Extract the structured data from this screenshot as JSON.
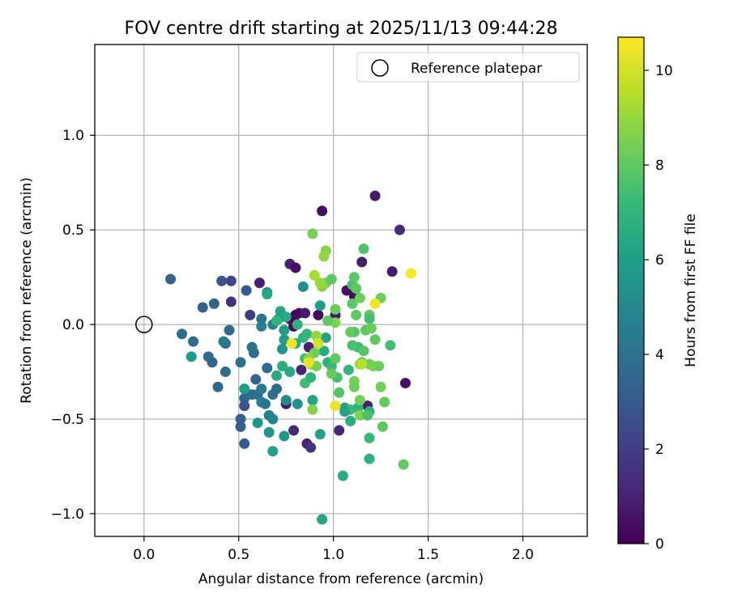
{
  "chart_data": {
    "type": "scatter",
    "title": "FOV centre drift starting at 2025/11/13 09:44:28",
    "xlabel": "Angular distance from reference (arcmin)",
    "ylabel": "Rotation from reference (arcmin)",
    "xlim": [
      -0.26,
      2.34
    ],
    "ylim": [
      -1.12,
      1.48
    ],
    "xticks": [
      0.0,
      0.5,
      1.0,
      1.5,
      2.0
    ],
    "xtick_labels": [
      "0.0",
      "0.5",
      "1.0",
      "1.5",
      "2.0"
    ],
    "yticks": [
      -1.0,
      -0.5,
      0.0,
      0.5,
      1.0
    ],
    "ytick_labels": [
      "−1.0",
      "−0.5",
      "0.0",
      "0.5",
      "1.0"
    ],
    "grid": true,
    "legend": {
      "position": "upper right",
      "entries": [
        "Reference platepar"
      ]
    },
    "reference_point": {
      "x": 0.0,
      "y": 0.0,
      "label": "Reference platepar"
    },
    "colorbar": {
      "label": "Hours from first FF file",
      "range": [
        0,
        10.7
      ],
      "colormap": "viridis",
      "ticks": [
        0,
        2,
        4,
        6,
        8,
        10
      ],
      "tick_labels": [
        "0",
        "2",
        "4",
        "6",
        "8",
        "10"
      ]
    },
    "colormap_stops": [
      "#440154",
      "#482878",
      "#3e4989",
      "#31688e",
      "#26828e",
      "#1f9e89",
      "#35b779",
      "#6ece58",
      "#b5de2b",
      "#fde725"
    ],
    "points": [
      {
        "x": 0.94,
        "y": 0.6,
        "h": 0.3
      },
      {
        "x": 1.22,
        "y": 0.68,
        "h": 0.8
      },
      {
        "x": 1.35,
        "y": 0.5,
        "h": 1.3
      },
      {
        "x": 0.77,
        "y": 0.32,
        "h": 1.0
      },
      {
        "x": 0.8,
        "y": 0.3,
        "h": 0.4
      },
      {
        "x": 1.15,
        "y": 0.33,
        "h": 0.9
      },
      {
        "x": 1.31,
        "y": 0.28,
        "h": 0.8
      },
      {
        "x": 0.61,
        "y": 0.22,
        "h": 1.0
      },
      {
        "x": 0.46,
        "y": 0.12,
        "h": 1.5
      },
      {
        "x": 1.07,
        "y": 0.18,
        "h": 0.5
      },
      {
        "x": 1.11,
        "y": 0.15,
        "h": 0.3
      },
      {
        "x": 1.01,
        "y": 0.05,
        "h": 0.6
      },
      {
        "x": 0.92,
        "y": 0.05,
        "h": 0.2
      },
      {
        "x": 0.82,
        "y": 0.06,
        "h": 0.5
      },
      {
        "x": 0.85,
        "y": 0.06,
        "h": 0.8
      },
      {
        "x": 0.77,
        "y": 0.03,
        "h": 0.1
      },
      {
        "x": 0.8,
        "y": 0.05,
        "h": 0.2
      },
      {
        "x": 0.79,
        "y": -0.01,
        "h": 0.3
      },
      {
        "x": 0.87,
        "y": -0.12,
        "h": 0.9
      },
      {
        "x": 0.83,
        "y": -0.24,
        "h": 1.1
      },
      {
        "x": 0.75,
        "y": -0.42,
        "h": 0.8
      },
      {
        "x": 0.79,
        "y": -0.56,
        "h": 1.3
      },
      {
        "x": 0.86,
        "y": -0.63,
        "h": 1.0
      },
      {
        "x": 0.88,
        "y": -0.65,
        "h": 1.6
      },
      {
        "x": 1.03,
        "y": -0.56,
        "h": 1.1
      },
      {
        "x": 1.18,
        "y": -0.43,
        "h": 0.9
      },
      {
        "x": 1.38,
        "y": -0.31,
        "h": 0.5
      },
      {
        "x": 0.14,
        "y": 0.24,
        "h": 3.5
      },
      {
        "x": 0.41,
        "y": 0.23,
        "h": 2.7
      },
      {
        "x": 0.46,
        "y": 0.23,
        "h": 2.2
      },
      {
        "x": 0.54,
        "y": 0.18,
        "h": 3.0
      },
      {
        "x": 0.31,
        "y": 0.09,
        "h": 3.3
      },
      {
        "x": 0.37,
        "y": 0.11,
        "h": 3.3
      },
      {
        "x": 0.56,
        "y": 0.05,
        "h": 1.9
      },
      {
        "x": 0.45,
        "y": -0.03,
        "h": 3.6
      },
      {
        "x": 0.2,
        "y": -0.05,
        "h": 3.8
      },
      {
        "x": 0.26,
        "y": -0.09,
        "h": 3.8
      },
      {
        "x": 0.43,
        "y": -0.1,
        "h": 3.6
      },
      {
        "x": 0.42,
        "y": -0.09,
        "h": 4.5
      },
      {
        "x": 0.34,
        "y": -0.17,
        "h": 3.8
      },
      {
        "x": 0.36,
        "y": -0.2,
        "h": 3.4
      },
      {
        "x": 0.43,
        "y": -0.25,
        "h": 3.8
      },
      {
        "x": 0.51,
        "y": -0.2,
        "h": 4.0
      },
      {
        "x": 0.57,
        "y": -0.12,
        "h": 4.0
      },
      {
        "x": 0.58,
        "y": -0.15,
        "h": 3.8
      },
      {
        "x": 0.62,
        "y": 0.03,
        "h": 4.1
      },
      {
        "x": 0.62,
        "y": -0.01,
        "h": 4.5
      },
      {
        "x": 0.68,
        "y": 0.0,
        "h": 4.8
      },
      {
        "x": 0.65,
        "y": 0.17,
        "h": 5.3
      },
      {
        "x": 0.25,
        "y": -0.17,
        "h": 5.8
      },
      {
        "x": 0.39,
        "y": -0.33,
        "h": 3.5
      },
      {
        "x": 0.51,
        "y": -0.5,
        "h": 3.3
      },
      {
        "x": 0.51,
        "y": -0.54,
        "h": 3.2
      },
      {
        "x": 0.53,
        "y": -0.39,
        "h": 3.6
      },
      {
        "x": 0.53,
        "y": -0.43,
        "h": 2.8
      },
      {
        "x": 0.53,
        "y": -0.63,
        "h": 3.1
      },
      {
        "x": 0.59,
        "y": -0.29,
        "h": 3.4
      },
      {
        "x": 0.57,
        "y": -0.37,
        "h": 3.9
      },
      {
        "x": 0.6,
        "y": -0.37,
        "h": 3.8
      },
      {
        "x": 0.62,
        "y": -0.34,
        "h": 4.5
      },
      {
        "x": 0.62,
        "y": -0.41,
        "h": 4.8
      },
      {
        "x": 0.64,
        "y": -0.42,
        "h": 4.3
      },
      {
        "x": 0.65,
        "y": -0.23,
        "h": 3.7
      },
      {
        "x": 0.68,
        "y": -0.37,
        "h": 4.0
      },
      {
        "x": 0.7,
        "y": -0.34,
        "h": 3.7
      },
      {
        "x": 0.66,
        "y": -0.48,
        "h": 4.6
      },
      {
        "x": 0.68,
        "y": -0.5,
        "h": 4.9
      },
      {
        "x": 0.6,
        "y": -0.52,
        "h": 5.5
      },
      {
        "x": 0.66,
        "y": -0.57,
        "h": 5.5
      },
      {
        "x": 0.74,
        "y": -0.59,
        "h": 5.6
      },
      {
        "x": 0.68,
        "y": -0.67,
        "h": 6.1
      },
      {
        "x": 0.53,
        "y": -0.34,
        "h": 6.0
      },
      {
        "x": 0.7,
        "y": -0.27,
        "h": 6.5
      },
      {
        "x": 0.73,
        "y": -0.13,
        "h": 5.5
      },
      {
        "x": 0.74,
        "y": -0.08,
        "h": 5.7
      },
      {
        "x": 0.73,
        "y": -0.22,
        "h": 6.7
      },
      {
        "x": 0.77,
        "y": -0.25,
        "h": 6.4
      },
      {
        "x": 0.75,
        "y": -0.4,
        "h": 5.2
      },
      {
        "x": 0.81,
        "y": -0.42,
        "h": 5.5
      },
      {
        "x": 0.72,
        "y": 0.07,
        "h": 6.3
      },
      {
        "x": 0.75,
        "y": 0.04,
        "h": 6.6
      },
      {
        "x": 0.71,
        "y": 0.03,
        "h": 5.9
      },
      {
        "x": 0.74,
        "y": -0.03,
        "h": 5.9
      },
      {
        "x": 0.7,
        "y": 0.02,
        "h": 7.0
      },
      {
        "x": 0.65,
        "y": 0.16,
        "h": 6.4
      },
      {
        "x": 0.84,
        "y": 0.2,
        "h": 5.3
      },
      {
        "x": 0.81,
        "y": 0.0,
        "h": 6.8
      },
      {
        "x": 0.8,
        "y": -0.1,
        "h": 6.4
      },
      {
        "x": 0.84,
        "y": -0.07,
        "h": 6.9
      },
      {
        "x": 0.86,
        "y": -0.05,
        "h": 7.0
      },
      {
        "x": 0.85,
        "y": -0.18,
        "h": 7.3
      },
      {
        "x": 0.85,
        "y": -0.31,
        "h": 7.4
      },
      {
        "x": 0.88,
        "y": -0.28,
        "h": 6.9
      },
      {
        "x": 0.89,
        "y": -0.4,
        "h": 6.2
      },
      {
        "x": 0.93,
        "y": -0.58,
        "h": 6.1
      },
      {
        "x": 0.94,
        "y": -1.03,
        "h": 6.3
      },
      {
        "x": 1.05,
        "y": -0.8,
        "h": 6.5
      },
      {
        "x": 0.93,
        "y": 0.1,
        "h": 6.0
      },
      {
        "x": 0.96,
        "y": -0.07,
        "h": 6.2
      },
      {
        "x": 0.95,
        "y": -0.14,
        "h": 6.5
      },
      {
        "x": 0.97,
        "y": -0.2,
        "h": 6.9
      },
      {
        "x": 0.99,
        "y": -0.22,
        "h": 7.2
      },
      {
        "x": 1.02,
        "y": -0.28,
        "h": 7.5
      },
      {
        "x": 1.06,
        "y": -0.44,
        "h": 6.0
      },
      {
        "x": 1.09,
        "y": -0.51,
        "h": 6.7
      },
      {
        "x": 1.09,
        "y": -0.45,
        "h": 7.3
      },
      {
        "x": 1.06,
        "y": -0.46,
        "h": 6.2
      },
      {
        "x": 1.13,
        "y": -0.44,
        "h": 7.0
      },
      {
        "x": 1.19,
        "y": -0.46,
        "h": 6.9
      },
      {
        "x": 1.19,
        "y": -0.6,
        "h": 7.2
      },
      {
        "x": 1.19,
        "y": -0.71,
        "h": 6.8
      },
      {
        "x": 1.1,
        "y": 0.21,
        "h": 7.5
      },
      {
        "x": 1.1,
        "y": 0.11,
        "h": 7.9
      },
      {
        "x": 1.11,
        "y": 0.25,
        "h": 7.9
      },
      {
        "x": 1.12,
        "y": 0.19,
        "h": 8.0
      },
      {
        "x": 1.14,
        "y": 0.14,
        "h": 8.3
      },
      {
        "x": 1.16,
        "y": 0.4,
        "h": 7.7
      },
      {
        "x": 1.12,
        "y": 0.05,
        "h": 8.0
      },
      {
        "x": 1.19,
        "y": 0.05,
        "h": 8.0
      },
      {
        "x": 1.19,
        "y": 0.03,
        "h": 7.5
      },
      {
        "x": 1.17,
        "y": -0.03,
        "h": 8.0
      },
      {
        "x": 1.2,
        "y": -0.02,
        "h": 8.2
      },
      {
        "x": 1.22,
        "y": -0.08,
        "h": 8.0
      },
      {
        "x": 1.13,
        "y": -0.12,
        "h": 7.3
      },
      {
        "x": 1.16,
        "y": -0.14,
        "h": 7.8
      },
      {
        "x": 1.15,
        "y": -0.2,
        "h": 8.2
      },
      {
        "x": 1.14,
        "y": -0.21,
        "h": 8.9
      },
      {
        "x": 1.19,
        "y": -0.21,
        "h": 8.3
      },
      {
        "x": 1.21,
        "y": -0.22,
        "h": 8.5
      },
      {
        "x": 1.24,
        "y": -0.22,
        "h": 8.3
      },
      {
        "x": 1.25,
        "y": 0.14,
        "h": 8.3
      },
      {
        "x": 1.3,
        "y": -0.11,
        "h": 7.4
      },
      {
        "x": 1.25,
        "y": -0.33,
        "h": 8.4
      },
      {
        "x": 1.27,
        "y": -0.41,
        "h": 8.1
      },
      {
        "x": 1.26,
        "y": -0.54,
        "h": 8.0
      },
      {
        "x": 1.37,
        "y": -0.74,
        "h": 8.1
      },
      {
        "x": 1.11,
        "y": -0.04,
        "h": 7.8
      },
      {
        "x": 1.09,
        "y": -0.04,
        "h": 8.1
      },
      {
        "x": 1.11,
        "y": -0.3,
        "h": 8.5
      },
      {
        "x": 1.11,
        "y": -0.33,
        "h": 8.3
      },
      {
        "x": 1.14,
        "y": -0.4,
        "h": 8.4
      },
      {
        "x": 1.14,
        "y": -0.48,
        "h": 8.6
      },
      {
        "x": 1.18,
        "y": -0.48,
        "h": 7.6
      },
      {
        "x": 1.08,
        "y": -0.24,
        "h": 7.0
      },
      {
        "x": 1.03,
        "y": -0.36,
        "h": 7.8
      },
      {
        "x": 1.01,
        "y": 0.08,
        "h": 8.2
      },
      {
        "x": 1.01,
        "y": 0.01,
        "h": 8.6
      },
      {
        "x": 0.97,
        "y": 0.02,
        "h": 8.0
      },
      {
        "x": 0.96,
        "y": 0.22,
        "h": 8.3
      },
      {
        "x": 0.94,
        "y": 0.2,
        "h": 8.8
      },
      {
        "x": 0.93,
        "y": 0.22,
        "h": 9.0
      },
      {
        "x": 0.9,
        "y": 0.26,
        "h": 9.3
      },
      {
        "x": 0.96,
        "y": 0.39,
        "h": 8.7
      },
      {
        "x": 0.95,
        "y": 0.36,
        "h": 8.9
      },
      {
        "x": 0.89,
        "y": 0.48,
        "h": 8.4
      },
      {
        "x": 0.99,
        "y": 0.24,
        "h": 7.9
      },
      {
        "x": 0.91,
        "y": -0.06,
        "h": 9.0
      },
      {
        "x": 0.9,
        "y": -0.15,
        "h": 8.3
      },
      {
        "x": 0.87,
        "y": -0.18,
        "h": 8.8
      },
      {
        "x": 0.88,
        "y": -0.21,
        "h": 9.0
      },
      {
        "x": 0.91,
        "y": -0.22,
        "h": 8.4
      },
      {
        "x": 1.01,
        "y": -0.18,
        "h": 8.0
      },
      {
        "x": 0.99,
        "y": -0.26,
        "h": 8.1
      },
      {
        "x": 0.89,
        "y": -0.45,
        "h": 8.7
      },
      {
        "x": 1.1,
        "y": -0.11,
        "h": 7.6
      },
      {
        "x": 0.78,
        "y": -0.1,
        "h": 10.5
      },
      {
        "x": 0.87,
        "y": -0.2,
        "h": 10.3
      },
      {
        "x": 0.92,
        "y": -0.1,
        "h": 10.0
      },
      {
        "x": 1.01,
        "y": -0.43,
        "h": 10.4
      },
      {
        "x": 1.22,
        "y": 0.11,
        "h": 10.5
      },
      {
        "x": 1.41,
        "y": 0.27,
        "h": 10.6
      },
      {
        "x": 1.15,
        "y": -0.21,
        "h": 9.6
      }
    ]
  }
}
